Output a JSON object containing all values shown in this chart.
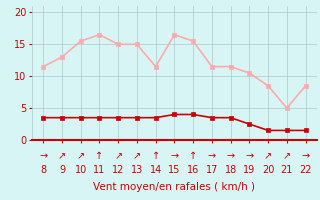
{
  "x": [
    8,
    9,
    10,
    11,
    12,
    13,
    14,
    15,
    16,
    17,
    18,
    19,
    20,
    21,
    22
  ],
  "rafales": [
    11.5,
    13,
    15.5,
    16.5,
    15,
    15,
    11.5,
    16.5,
    15.5,
    11.5,
    11.5,
    10.5,
    8.5,
    5,
    8.5
  ],
  "vent_moyen": [
    3.5,
    3.5,
    3.5,
    3.5,
    3.5,
    3.5,
    3.5,
    4,
    4,
    3.5,
    3.5,
    2.5,
    1.5,
    1.5,
    1.5
  ],
  "rafales_color": "#ffaaaa",
  "vent_color": "#cc0000",
  "background_color": "#d8f5f5",
  "grid_color": "#b0c8c8",
  "xlabel": "Vent moyen/en rafales ( km/h )",
  "ylim": [
    0,
    21
  ],
  "yticks": [
    0,
    5,
    10,
    15,
    20
  ],
  "xticks": [
    8,
    9,
    10,
    11,
    12,
    13,
    14,
    15,
    16,
    17,
    18,
    19,
    20,
    21,
    22
  ],
  "arrow_symbols": [
    "→",
    "↗",
    "↗",
    "↑",
    "↗",
    "↗",
    "↑",
    "→",
    "↑",
    "→",
    "→",
    "→",
    "↗",
    "↗",
    "→"
  ],
  "marker_size": 3,
  "line_width": 1.2,
  "xlabel_fontsize": 7.5,
  "tick_fontsize": 7,
  "arrow_fontsize": 7
}
